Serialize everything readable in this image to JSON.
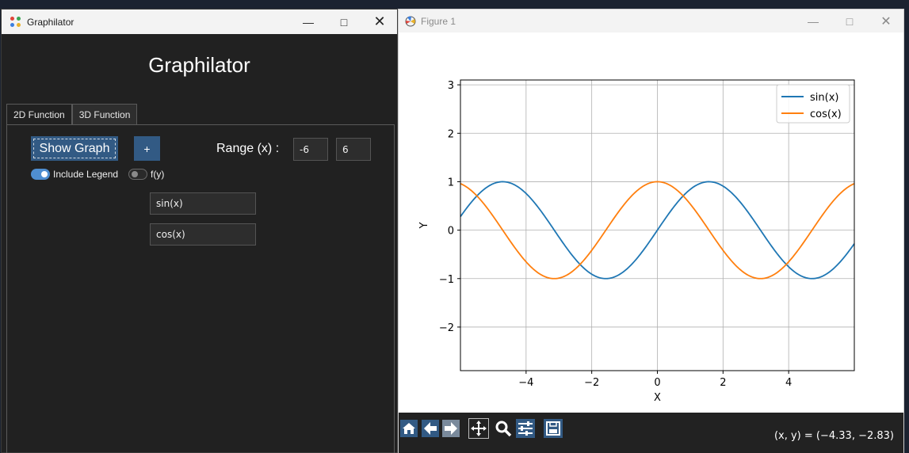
{
  "app_window": {
    "title": "Graphilator",
    "heading": "Graphilator",
    "tabs": [
      {
        "label": "2D Function",
        "active": true
      },
      {
        "label": "3D Function",
        "active": false
      }
    ],
    "show_graph_label": "Show Graph",
    "add_function_label": "+",
    "range_label": "Range (x) :",
    "range_min": "-6",
    "range_max": "6",
    "include_legend": {
      "label": "Include Legend",
      "on": true
    },
    "fy_toggle": {
      "label": "f(y)",
      "on": false
    },
    "functions": [
      "sin(x)",
      "cos(x)"
    ],
    "colors": {
      "background": "#212121",
      "button": "#325a84",
      "accent": "#4f8ed0"
    }
  },
  "figure_window": {
    "title": "Figure 1",
    "toolbar": [
      "home-icon",
      "back-arrow-icon",
      "forward-arrow-icon",
      "pan-icon",
      "zoom-icon",
      "configure-subplots-icon",
      "save-icon"
    ],
    "coord_readout": "(x, y) = (−4.33, −2.83)"
  },
  "chart_data": {
    "type": "line",
    "title": "",
    "xlabel": "X",
    "ylabel": "Y",
    "xlim": [
      -6,
      6
    ],
    "ylim": [
      -2.9,
      3.1
    ],
    "xticks": [
      -4,
      -2,
      0,
      2,
      4
    ],
    "xtick_labels": [
      "−4",
      "−2",
      "0",
      "2",
      "4"
    ],
    "yticks": [
      -2,
      -1,
      0,
      1,
      2,
      3
    ],
    "ytick_labels": [
      "−2",
      "−1",
      "0",
      "1",
      "2",
      "3"
    ],
    "grid": true,
    "legend_position": "top-right",
    "series": [
      {
        "name": "sin(x)",
        "function": "sin",
        "color": "#1f77b4"
      },
      {
        "name": "cos(x)",
        "function": "cos",
        "color": "#ff7f0e"
      }
    ]
  }
}
